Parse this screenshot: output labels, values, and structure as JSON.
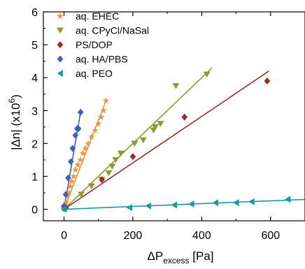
{
  "chart_data": {
    "type": "scatter",
    "x_axis": {
      "label": "ΔP",
      "label_subscript": "excess",
      "label_unit": " [Pa]",
      "range": [
        -60,
        700
      ],
      "ticks": [
        0,
        200,
        400,
        600
      ]
    },
    "y_axis": {
      "label_main": "|Δn| (x10",
      "label_sup": "6",
      "label_close": ")",
      "range": [
        -0.35,
        6.0
      ],
      "ticks": [
        0,
        1,
        2,
        3,
        4,
        5,
        6
      ]
    },
    "grid": false,
    "legend": {
      "placement": "top-left"
    },
    "series": [
      {
        "name": "aq. EHEC",
        "color": "#f5923a",
        "marker": "star",
        "points": [
          [
            0,
            0
          ],
          [
            3,
            0.1
          ],
          [
            6,
            0.2
          ],
          [
            10,
            0.4
          ],
          [
            14,
            0.5
          ],
          [
            18,
            0.7
          ],
          [
            22,
            0.85
          ],
          [
            28,
            1.0
          ],
          [
            33,
            1.2
          ],
          [
            40,
            1.35
          ],
          [
            48,
            1.5
          ],
          [
            55,
            1.7
          ],
          [
            62,
            1.85
          ],
          [
            70,
            2.0
          ],
          [
            80,
            2.2
          ],
          [
            90,
            2.4
          ],
          [
            100,
            2.6
          ],
          [
            108,
            2.8
          ],
          [
            115,
            3.0
          ],
          [
            122,
            3.3
          ]
        ],
        "fit": [
          [
            0,
            0
          ],
          [
            122,
            3.3
          ]
        ]
      },
      {
        "name": "aq. CPyCl/NaSal",
        "color": "#8c9a2e",
        "marker": "triangle-down",
        "points": [
          [
            0,
            0
          ],
          [
            50,
            0.45
          ],
          [
            80,
            0.7
          ],
          [
            110,
            0.9
          ],
          [
            130,
            1.1
          ],
          [
            140,
            1.3
          ],
          [
            150,
            1.5
          ],
          [
            165,
            1.7
          ],
          [
            205,
            2.0
          ],
          [
            230,
            2.1
          ],
          [
            260,
            2.4
          ],
          [
            265,
            2.5
          ],
          [
            280,
            2.6
          ],
          [
            325,
            3.75
          ],
          [
            415,
            4.1
          ]
        ],
        "fit": [
          [
            0,
            0
          ],
          [
            430,
            4.3
          ]
        ]
      },
      {
        "name": "PS/DOP",
        "color": "#9b2a2a",
        "marker": "diamond",
        "points": [
          [
            5,
            0.05
          ],
          [
            110,
            0.9
          ],
          [
            200,
            1.6
          ],
          [
            350,
            2.8
          ],
          [
            590,
            3.9
          ]
        ],
        "fit": [
          [
            0,
            0
          ],
          [
            595,
            4.2
          ]
        ]
      },
      {
        "name": "aq. HA/PBS",
        "color": "#3a5ec2",
        "marker": "diamond",
        "points": [
          [
            0,
            0.1
          ],
          [
            5,
            0.45
          ],
          [
            12,
            0.95
          ],
          [
            20,
            1.45
          ],
          [
            25,
            1.85
          ],
          [
            33,
            2.25
          ],
          [
            38,
            2.45
          ],
          [
            42,
            2.45
          ],
          [
            48,
            2.95
          ]
        ],
        "fit": [
          [
            0,
            0
          ],
          [
            48,
            2.95
          ]
        ]
      },
      {
        "name": "aq. PEO",
        "color": "#1a9a9a",
        "marker": "triangle-left",
        "points": [
          [
            0,
            0
          ],
          [
            190,
            0.05
          ],
          [
            245,
            0.1
          ],
          [
            320,
            0.13
          ],
          [
            370,
            0.16
          ],
          [
            440,
            0.2
          ],
          [
            500,
            0.2
          ],
          [
            545,
            0.23
          ],
          [
            650,
            0.3
          ]
        ],
        "fit": [
          [
            0,
            0
          ],
          [
            700,
            0.3
          ]
        ]
      }
    ]
  }
}
